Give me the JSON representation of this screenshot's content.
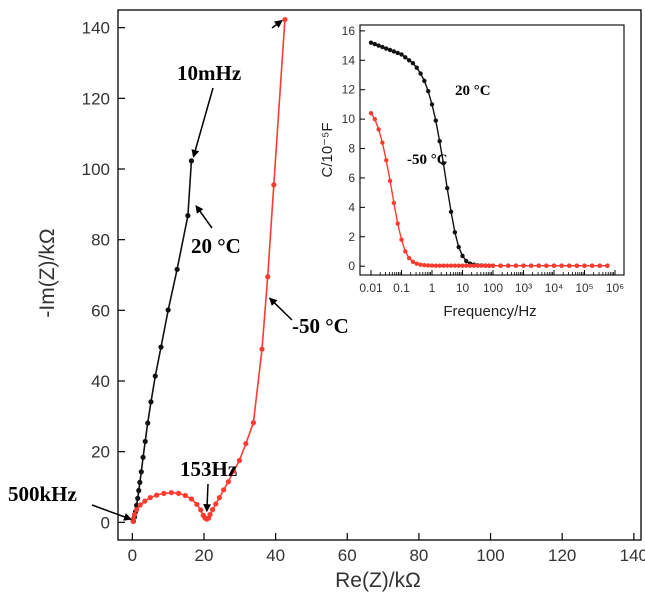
{
  "chart_data": [
    {
      "type": "scatter",
      "title": "",
      "xlabel": "Re(Z)/kΩ",
      "ylabel": "-Im(Z)/kΩ",
      "xlim": [
        -4,
        142
      ],
      "ylim": [
        -5,
        145
      ],
      "xticks": [
        "0",
        "20",
        "40",
        "60",
        "80",
        "100",
        "120",
        "140"
      ],
      "yticks": [
        "0",
        "20",
        "40",
        "60",
        "80",
        "100",
        "120",
        "140"
      ],
      "grid": false,
      "colors": {
        "s20": "#111111",
        "sm50": "#ff3b30"
      },
      "series": [
        {
          "name": "20 °C",
          "points": [
            [
              0.3,
              0.3
            ],
            [
              0.6,
              1.5
            ],
            [
              0.9,
              3.0
            ],
            [
              1.2,
              4.8
            ],
            [
              1.5,
              6.8
            ],
            [
              1.8,
              9.0
            ],
            [
              2.1,
              11.3
            ],
            [
              2.5,
              14.3
            ],
            [
              3.0,
              18.4
            ],
            [
              3.6,
              22.9
            ],
            [
              4.3,
              28.1
            ],
            [
              5.2,
              34.1
            ],
            [
              6.4,
              41.4
            ],
            [
              8.0,
              49.6
            ],
            [
              10.0,
              60.1
            ],
            [
              12.5,
              71.6
            ],
            [
              15.5,
              86.8
            ],
            [
              16.5,
              102.3
            ]
          ]
        },
        {
          "name": "-50 °C",
          "points": [
            [
              0.2,
              0.3
            ],
            [
              0.3,
              1.0
            ],
            [
              0.6,
              2.2
            ],
            [
              1.2,
              3.6
            ],
            [
              2.2,
              4.9
            ],
            [
              3.5,
              6.0
            ],
            [
              5.0,
              7.0
            ],
            [
              6.8,
              7.7
            ],
            [
              8.8,
              8.2
            ],
            [
              10.9,
              8.4
            ],
            [
              12.9,
              8.2
            ],
            [
              14.8,
              7.6
            ],
            [
              16.5,
              6.6
            ],
            [
              18.0,
              5.1
            ],
            [
              19.1,
              3.5
            ],
            [
              19.8,
              2.0
            ],
            [
              20.3,
              1.2
            ],
            [
              20.8,
              0.9
            ],
            [
              21.3,
              1.2
            ],
            [
              21.7,
              2.2
            ],
            [
              22.4,
              3.6
            ],
            [
              23.3,
              5.2
            ],
            [
              24.3,
              7.0
            ],
            [
              25.5,
              9.2
            ],
            [
              26.8,
              11.5
            ],
            [
              28.3,
              14.5
            ],
            [
              29.9,
              17.5
            ],
            [
              31.7,
              22.3
            ],
            [
              33.8,
              28.2
            ],
            [
              36.2,
              49.0
            ],
            [
              37.8,
              69.5
            ],
            [
              39.5,
              95.5
            ],
            [
              42.6,
              142.3
            ]
          ]
        }
      ],
      "annotations": [
        {
          "text": "10mHz",
          "x": 16.5,
          "y": 102.3
        },
        {
          "text": "20 °C",
          "x": 17.5,
          "y": 91
        },
        {
          "text": "-50 °C",
          "x": 37.5,
          "y": 64
        },
        {
          "text": "153Hz",
          "x": 20.8,
          "y": 0.9
        },
        {
          "text": "500kHz",
          "x": 0.2,
          "y": 0.3
        }
      ]
    },
    {
      "type": "line",
      "title": "",
      "xlabel": "Frequency/Hz",
      "ylabel": "C/10⁻⁵F",
      "xscale": "log",
      "xlim": [
        0.01,
        1000000
      ],
      "ylim": [
        -0.6,
        16.4
      ],
      "xticks": [
        "0.01",
        "0.1",
        "1",
        "10",
        "100",
        "10³",
        "10⁴",
        "10⁵",
        "10⁶"
      ],
      "yticks": [
        "0",
        "2",
        "4",
        "6",
        "8",
        "10",
        "12",
        "14",
        "16"
      ],
      "grid": false,
      "series": [
        {
          "name": "20 °C",
          "x": [
            0.01,
            0.0133,
            0.0178,
            0.0237,
            0.0316,
            0.0422,
            0.0562,
            0.075,
            0.1,
            0.133,
            0.178,
            0.237,
            0.316,
            0.422,
            0.562,
            0.75,
            1,
            1.33,
            1.78,
            2.37,
            3.16,
            4.22,
            5.62,
            7.5,
            10,
            13.3,
            17.8,
            23.7,
            31.6,
            42.2,
            56.2,
            75,
            100,
            178,
            316,
            562,
            1000,
            1780,
            3160,
            5620,
            10000,
            17800,
            31600,
            56200,
            100000,
            178000,
            316000,
            562000
          ],
          "values": [
            15.2,
            15.1,
            15.0,
            14.9,
            14.8,
            14.7,
            14.6,
            14.5,
            14.4,
            14.2,
            14.0,
            13.8,
            13.5,
            13.1,
            12.6,
            11.9,
            11.0,
            9.9,
            8.5,
            7.0,
            5.3,
            3.7,
            2.3,
            1.3,
            0.7,
            0.35,
            0.17,
            0.1,
            0.06,
            0.05,
            0.04,
            0.03,
            0.03,
            0.03,
            0.03,
            0.03,
            0.03,
            0.03,
            0.03,
            0.03,
            0.03,
            0.03,
            0.03,
            0.03,
            0.03,
            0.03,
            0.03,
            0.03
          ]
        },
        {
          "name": "-50 °C",
          "x": [
            0.01,
            0.0133,
            0.0178,
            0.0237,
            0.0316,
            0.0422,
            0.0562,
            0.075,
            0.1,
            0.133,
            0.178,
            0.237,
            0.316,
            0.422,
            0.562,
            0.75,
            1,
            1.33,
            1.78,
            2.37,
            3.16,
            4.22,
            5.62,
            7.5,
            10,
            13.3,
            17.8,
            23.7,
            31.6,
            42.2,
            56.2,
            75,
            100,
            178,
            316,
            562,
            1000,
            1780,
            3160,
            5620,
            10000,
            17800,
            31600,
            56200,
            100000,
            178000,
            316000,
            562000
          ],
          "values": [
            10.4,
            10.0,
            9.3,
            8.4,
            7.2,
            5.8,
            4.3,
            2.9,
            1.8,
            1.0,
            0.55,
            0.3,
            0.17,
            0.1,
            0.07,
            0.05,
            0.04,
            0.03,
            0.03,
            0.03,
            0.03,
            0.03,
            0.03,
            0.03,
            0.03,
            0.03,
            0.03,
            0.03,
            0.03,
            0.03,
            0.03,
            0.03,
            0.03,
            0.03,
            0.03,
            0.03,
            0.03,
            0.03,
            0.03,
            0.03,
            0.03,
            0.03,
            0.03,
            0.03,
            0.03,
            0.03,
            0.03,
            0.03
          ]
        }
      ],
      "annotations": [
        {
          "text": "20 °C"
        },
        {
          "text": "-50 °C"
        }
      ]
    }
  ]
}
